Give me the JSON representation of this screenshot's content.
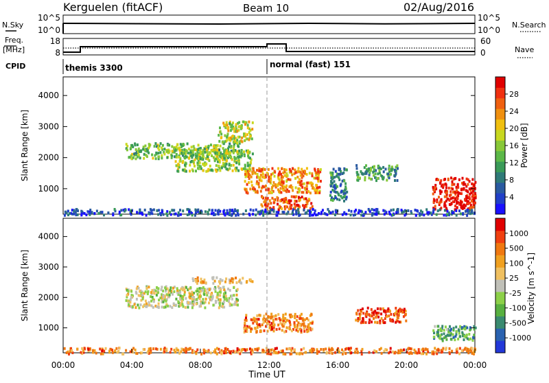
{
  "header": {
    "station": "Kerguelen (fitACF)",
    "beam": "Beam 10",
    "date": "02/Aug/2016"
  },
  "strips": {
    "nsky_label": "N.Sky",
    "nsky_ticks": [
      "10^5",
      "10^0"
    ],
    "nsearch_label": "N.Search",
    "freq_label_line1": "Freq.",
    "freq_label_line2": "[MHz]",
    "freq_ticks": [
      "18",
      "8"
    ],
    "nave_label": "Nave",
    "nave_ticks": [
      "60",
      "0"
    ],
    "cpid_label": "CPID",
    "cpid_segments": [
      {
        "label": "themis 3300",
        "start_hour": 0
      },
      {
        "label": "normal (fast) 151",
        "start_hour": 12
      }
    ]
  },
  "chart_data": [
    {
      "type": "heatmap",
      "name": "power",
      "ylabel": "Slant Range [km]",
      "xlabel": "Time UT",
      "ylim": [
        180,
        4600
      ],
      "xlim": [
        0,
        24
      ],
      "yticks": [
        1000,
        2000,
        3000,
        4000
      ],
      "xticks": [
        "00:00",
        "04:00",
        "08:00",
        "12:00",
        "16:00",
        "20:00",
        "00:00"
      ],
      "colorbar": {
        "label": "Power [dB]",
        "ticks": [
          "4",
          "8",
          "12",
          "16",
          "20",
          "24",
          "28"
        ],
        "colors": [
          "#1a10ff",
          "#2140c8",
          "#2a5aa0",
          "#2f7a78",
          "#3a9a58",
          "#5cb848",
          "#88c838",
          "#c8d820",
          "#f0c010",
          "#f09010",
          "#f06010",
          "#f03010",
          "#e00000"
        ]
      },
      "regions": [
        {
          "t": [
            3.6,
            10.2
          ],
          "r": [
            2000,
            2500
          ],
          "level": 0.45
        },
        {
          "t": [
            6.5,
            11.0
          ],
          "r": [
            1600,
            2300
          ],
          "level": 0.5
        },
        {
          "t": [
            9.0,
            11.0
          ],
          "r": [
            2500,
            3200
          ],
          "level": 0.55
        },
        {
          "t": [
            10.5,
            15.0
          ],
          "r": [
            900,
            1700
          ],
          "level": 0.75
        },
        {
          "t": [
            11.5,
            14.5
          ],
          "r": [
            350,
            800
          ],
          "level": 0.85
        },
        {
          "t": [
            15.5,
            16.5
          ],
          "r": [
            600,
            1700
          ],
          "level": 0.3
        },
        {
          "t": [
            17.0,
            19.5
          ],
          "r": [
            1300,
            1800
          ],
          "level": 0.35
        },
        {
          "t": [
            21.5,
            24.0
          ],
          "r": [
            350,
            1400
          ],
          "level": 0.95
        },
        {
          "t": [
            0.0,
            24.0
          ],
          "r": [
            180,
            380
          ],
          "level": 0.15
        }
      ]
    },
    {
      "type": "heatmap",
      "name": "velocity",
      "ylabel": "Slant Range [km]",
      "xlabel": "Time UT",
      "ylim": [
        180,
        4600
      ],
      "xlim": [
        0,
        24
      ],
      "yticks": [
        1000,
        2000,
        3000,
        4000
      ],
      "xticks": [
        "00:00",
        "04:00",
        "08:00",
        "12:00",
        "16:00",
        "20:00",
        "00:00"
      ],
      "colorbar": {
        "label": "Velocity [m s^-1]",
        "ticks": [
          "1000",
          "500",
          "100",
          "25",
          "-25",
          "-100",
          "-500",
          "-1000"
        ],
        "colors": [
          "#2238d8",
          "#2a62b0",
          "#3a8a70",
          "#58b040",
          "#8cd048",
          "#c0c0b8",
          "#f0c060",
          "#f0a020",
          "#f07810",
          "#f04010",
          "#e00000"
        ]
      },
      "regions": [
        {
          "t": [
            3.6,
            10.2
          ],
          "r": [
            1700,
            2400
          ],
          "level": 0.5
        },
        {
          "t": [
            7.5,
            11.0
          ],
          "r": [
            2500,
            2700
          ],
          "level": 0.65
        },
        {
          "t": [
            10.5,
            14.5
          ],
          "r": [
            900,
            1500
          ],
          "level": 0.75
        },
        {
          "t": [
            17.0,
            20.0
          ],
          "r": [
            1200,
            1700
          ],
          "level": 0.85
        },
        {
          "t": [
            21.5,
            24.0
          ],
          "r": [
            600,
            1100
          ],
          "level": 0.3
        },
        {
          "t": [
            0.0,
            24.0
          ],
          "r": [
            180,
            380
          ],
          "level": 0.75
        }
      ]
    }
  ]
}
